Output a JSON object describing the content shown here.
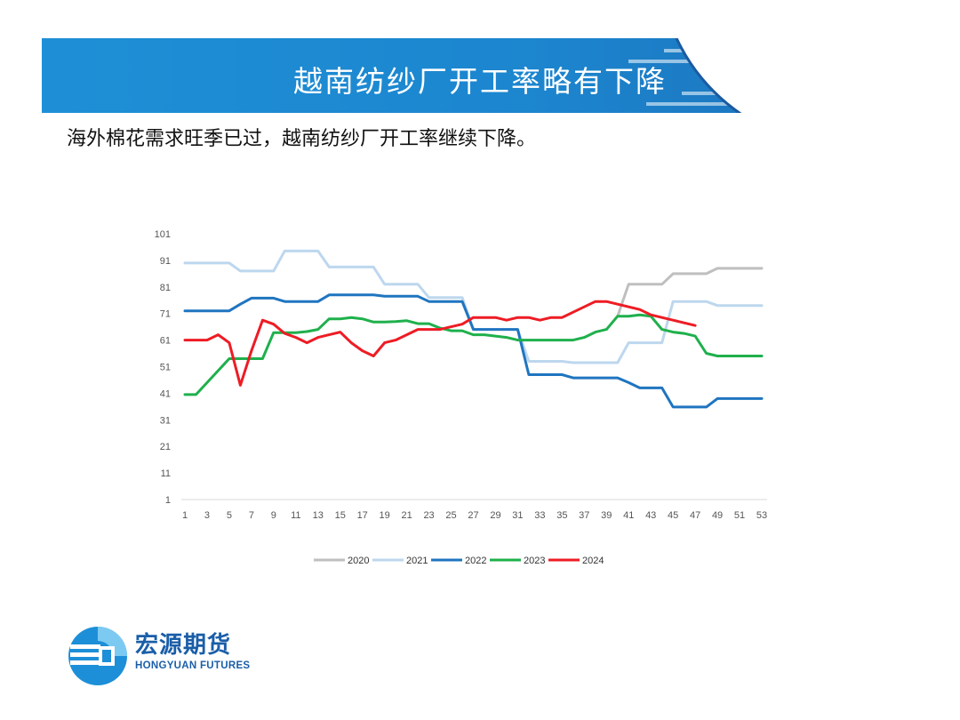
{
  "slide": {
    "title": "越南纺纱厂开工率略有下降",
    "subtitle": "海外棉花需求旺季已过，越南纺纱厂开工率继续下降。"
  },
  "logo": {
    "name_cn": "宏源期货",
    "name_en": "HONGYUAN FUTURES"
  },
  "colors": {
    "banner": "#1c86cf",
    "brand": "#1a5ea8"
  },
  "chart_data": {
    "type": "line",
    "x": [
      1,
      2,
      3,
      4,
      5,
      6,
      7,
      8,
      9,
      10,
      11,
      12,
      13,
      14,
      15,
      16,
      17,
      18,
      19,
      20,
      21,
      22,
      23,
      24,
      25,
      26,
      27,
      28,
      29,
      30,
      31,
      32,
      33,
      34,
      35,
      36,
      37,
      38,
      39,
      40,
      41,
      42,
      43,
      44,
      45,
      46,
      47,
      48,
      49,
      50,
      51,
      52,
      53
    ],
    "x_ticks": [
      1,
      3,
      5,
      7,
      9,
      11,
      13,
      15,
      17,
      19,
      21,
      23,
      25,
      27,
      29,
      31,
      33,
      35,
      37,
      39,
      41,
      43,
      45,
      47,
      49,
      51,
      53
    ],
    "y_ticks": [
      1,
      11,
      21,
      31,
      41,
      51,
      61,
      71,
      81,
      91,
      101
    ],
    "ylim": [
      1,
      101
    ],
    "xlim": [
      1,
      53
    ],
    "grid": false,
    "legend_position": "bottom",
    "series": [
      {
        "name": "2020",
        "color": "#bfbfbf",
        "values": [
          null,
          null,
          null,
          null,
          null,
          null,
          null,
          null,
          null,
          null,
          null,
          null,
          null,
          null,
          null,
          null,
          null,
          null,
          null,
          null,
          null,
          null,
          null,
          null,
          null,
          null,
          null,
          null,
          null,
          null,
          null,
          null,
          null,
          null,
          null,
          null,
          null,
          null,
          null,
          70,
          82,
          82,
          82,
          82,
          86,
          86,
          86,
          86,
          88,
          88,
          88,
          88,
          88
        ]
      },
      {
        "name": "2021",
        "color": "#bdd7ee",
        "values": [
          90,
          90,
          90,
          90,
          90,
          87,
          87,
          87,
          87,
          94.5,
          94.5,
          94.5,
          94.5,
          88.5,
          88.5,
          88.5,
          88.5,
          88.5,
          82,
          82,
          82,
          82,
          77,
          77,
          77,
          77,
          65,
          65,
          65,
          65,
          65,
          53,
          53,
          53,
          53,
          52.5,
          52.5,
          52.5,
          52.5,
          52.5,
          60,
          60,
          60,
          60,
          75.5,
          75.5,
          75.5,
          75.5,
          74,
          74,
          74,
          74,
          74
        ]
      },
      {
        "name": "2022",
        "color": "#1f75c0",
        "values": [
          72,
          72,
          72,
          72,
          72,
          74.5,
          76.8,
          76.8,
          76.8,
          75.5,
          75.5,
          75.5,
          75.5,
          78,
          78,
          78,
          78,
          78,
          77.5,
          77.5,
          77.5,
          77.5,
          75.5,
          75.5,
          75.5,
          75.5,
          65,
          65,
          65,
          65,
          65,
          48,
          48,
          48,
          48,
          46.8,
          46.8,
          46.8,
          46.8,
          46.8,
          45,
          43,
          43,
          43,
          35.8,
          35.8,
          35.8,
          35.8,
          39,
          39,
          39,
          39,
          39
        ]
      },
      {
        "name": "2023",
        "color": "#1fb04c",
        "values": [
          40.5,
          40.5,
          45,
          49.5,
          54,
          54,
          54,
          54,
          63.8,
          63.8,
          63.8,
          64.2,
          65,
          69,
          69,
          69.5,
          69,
          67.8,
          67.8,
          68,
          68.3,
          67.2,
          67.2,
          65.5,
          64.5,
          64.5,
          63,
          63,
          62.5,
          62,
          61,
          61,
          61,
          61,
          61,
          61,
          62,
          64,
          65,
          70,
          70,
          70.5,
          70,
          65,
          64,
          63.5,
          62.5,
          56,
          55,
          55,
          55,
          55,
          55
        ]
      },
      {
        "name": "2024",
        "color": "#ee1c24",
        "values": [
          61,
          61,
          61,
          63,
          60,
          44,
          57,
          68.5,
          67,
          63.5,
          62,
          60,
          62,
          63,
          64,
          60,
          57,
          55,
          60,
          61,
          63,
          65,
          65,
          65,
          66,
          67,
          69.5,
          69.5,
          69.5,
          68.5,
          69.5,
          69.5,
          68.5,
          69.5,
          69.5,
          71.5,
          73.5,
          75.5,
          75.5,
          74.5,
          73.5,
          72.5,
          70.5,
          69.5,
          68.5,
          67.5,
          66.5,
          null,
          null,
          null,
          null,
          null,
          null
        ]
      }
    ]
  }
}
